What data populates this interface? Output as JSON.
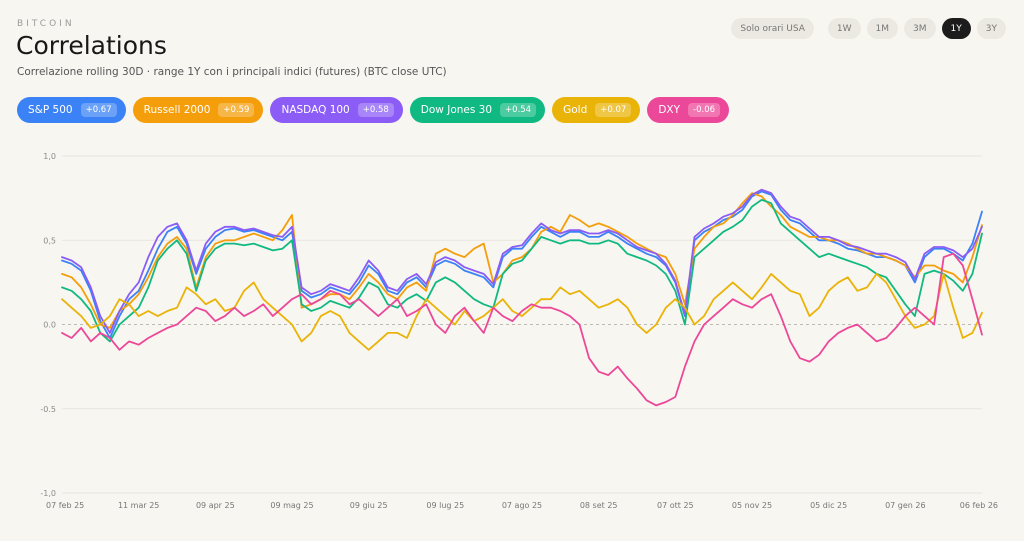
{
  "header": {
    "eyebrow": "BITCOIN",
    "title": "Correlations",
    "subtitle": "Correlazione rolling 30D · range 1Y con i principali indici (futures) (BTC close UTC)"
  },
  "controls": {
    "hours_toggle": "Solo orari USA",
    "ranges": [
      {
        "label": "1W",
        "active": false
      },
      {
        "label": "1M",
        "active": false
      },
      {
        "label": "3M",
        "active": false
      },
      {
        "label": "1Y",
        "active": true
      },
      {
        "label": "3Y",
        "active": false
      }
    ]
  },
  "chips": [
    {
      "name": "S&P 500",
      "value": "+0.67",
      "color": "#3b82f6"
    },
    {
      "name": "Russell 2000",
      "value": "+0.59",
      "color": "#f59e0b"
    },
    {
      "name": "NASDAQ 100",
      "value": "+0.58",
      "color": "#8b5cf6"
    },
    {
      "name": "Dow Jones 30",
      "value": "+0.54",
      "color": "#10b981"
    },
    {
      "name": "Gold",
      "value": "+0.07",
      "color": "#eab308"
    },
    {
      "name": "DXY",
      "value": "-0.06",
      "color": "#ec4899"
    }
  ],
  "chart_data": {
    "type": "line",
    "ylim": [
      -1.0,
      1.0
    ],
    "yticks": [
      "1,0",
      "0,5",
      "0.0",
      "-0.5",
      "-1,0"
    ],
    "yticks_values": [
      1.0,
      0.5,
      0.0,
      -0.5,
      -1.0
    ],
    "xticks": [
      "07 feb 25",
      "11 mar 25",
      "09 apr 25",
      "09 mag 25",
      "09 giu 25",
      "09 lug 25",
      "07 ago 25",
      "08 set 25",
      "07 ott 25",
      "05 nov 25",
      "05 dic 25",
      "07 gen 26",
      "06 feb 26"
    ],
    "xticks_index": [
      0,
      8,
      16,
      24,
      32,
      40,
      48,
      56,
      64,
      72,
      80,
      88,
      96
    ],
    "grid": true,
    "zero_line": "dashed",
    "x": [
      "07 feb 25",
      "11 feb 25",
      "15 feb 25",
      "19 feb 25",
      "23 feb 25",
      "27 feb 25",
      "03 mar 25",
      "07 mar 25",
      "11 mar 25",
      "15 mar 25",
      "19 mar 25",
      "23 mar 25",
      "27 mar 25",
      "31 mar 25",
      "04 apr 25",
      "08 apr 25",
      "09 apr 25",
      "13 apr 25",
      "17 apr 25",
      "21 apr 25",
      "25 apr 25",
      "29 apr 25",
      "03 mag 25",
      "07 mag 25",
      "09 mag 25",
      "13 mag 25",
      "17 mag 25",
      "21 mag 25",
      "25 mag 25",
      "29 mag 25",
      "02 giu 25",
      "06 giu 25",
      "09 giu 25",
      "13 giu 25",
      "17 giu 25",
      "21 giu 25",
      "25 giu 25",
      "29 giu 25",
      "03 lug 25",
      "07 lug 25",
      "09 lug 25",
      "13 lug 25",
      "17 lug 25",
      "21 lug 25",
      "25 lug 25",
      "29 lug 25",
      "02 ago 25",
      "06 ago 25",
      "07 ago 25",
      "11 ago 25",
      "15 ago 25",
      "19 ago 25",
      "23 ago 25",
      "27 ago 25",
      "31 ago 25",
      "04 set 25",
      "08 set 25",
      "12 set 25",
      "16 set 25",
      "20 set 25",
      "24 set 25",
      "28 set 25",
      "02 ott 25",
      "06 ott 25",
      "07 ott 25",
      "11 ott 25",
      "15 ott 25",
      "19 ott 25",
      "23 ott 25",
      "27 ott 25",
      "31 ott 25",
      "04 nov 25",
      "05 nov 25",
      "09 nov 25",
      "13 nov 25",
      "17 nov 25",
      "21 nov 25",
      "25 nov 25",
      "29 nov 25",
      "03 dic 25",
      "05 dic 25",
      "09 dic 25",
      "13 dic 25",
      "17 dic 25",
      "21 dic 25",
      "25 dic 25",
      "29 dic 25",
      "02 gen 26",
      "07 gen 26",
      "11 gen 26",
      "15 gen 26",
      "19 gen 26",
      "23 gen 26",
      "27 gen 26",
      "31 gen 26",
      "04 feb 26",
      "06 feb 26"
    ],
    "series": [
      {
        "name": "S&P 500",
        "color": "#3b82f6",
        "values": [
          0.38,
          0.36,
          0.32,
          0.2,
          0.02,
          -0.08,
          0.05,
          0.15,
          0.2,
          0.32,
          0.45,
          0.55,
          0.58,
          0.48,
          0.3,
          0.45,
          0.52,
          0.56,
          0.57,
          0.55,
          0.56,
          0.54,
          0.52,
          0.5,
          0.55,
          0.2,
          0.16,
          0.18,
          0.22,
          0.2,
          0.18,
          0.25,
          0.35,
          0.3,
          0.2,
          0.18,
          0.25,
          0.28,
          0.22,
          0.35,
          0.38,
          0.36,
          0.32,
          0.3,
          0.28,
          0.22,
          0.4,
          0.45,
          0.45,
          0.52,
          0.58,
          0.55,
          0.52,
          0.55,
          0.55,
          0.52,
          0.52,
          0.55,
          0.52,
          0.48,
          0.45,
          0.42,
          0.4,
          0.35,
          0.25,
          0.05,
          0.5,
          0.55,
          0.58,
          0.62,
          0.64,
          0.68,
          0.76,
          0.79,
          0.77,
          0.68,
          0.62,
          0.6,
          0.55,
          0.5,
          0.5,
          0.48,
          0.45,
          0.44,
          0.42,
          0.4,
          0.4,
          0.38,
          0.35,
          0.25,
          0.4,
          0.45,
          0.45,
          0.42,
          0.38,
          0.48,
          0.67
        ]
      },
      {
        "name": "Russell 2000",
        "color": "#f59e0b",
        "values": [
          0.3,
          0.28,
          0.22,
          0.12,
          0.0,
          -0.02,
          0.08,
          0.12,
          0.18,
          0.28,
          0.4,
          0.48,
          0.52,
          0.45,
          0.22,
          0.4,
          0.48,
          0.5,
          0.5,
          0.52,
          0.54,
          0.52,
          0.5,
          0.56,
          0.65,
          0.1,
          0.12,
          0.15,
          0.18,
          0.18,
          0.15,
          0.22,
          0.3,
          0.25,
          0.18,
          0.15,
          0.22,
          0.25,
          0.2,
          0.42,
          0.45,
          0.42,
          0.4,
          0.45,
          0.48,
          0.25,
          0.3,
          0.38,
          0.4,
          0.45,
          0.55,
          0.58,
          0.55,
          0.65,
          0.62,
          0.58,
          0.6,
          0.58,
          0.55,
          0.52,
          0.48,
          0.45,
          0.42,
          0.4,
          0.3,
          0.12,
          0.45,
          0.52,
          0.58,
          0.6,
          0.65,
          0.72,
          0.78,
          0.76,
          0.7,
          0.65,
          0.58,
          0.55,
          0.52,
          0.52,
          0.5,
          0.5,
          0.48,
          0.45,
          0.42,
          0.42,
          0.4,
          0.38,
          0.35,
          0.28,
          0.35,
          0.35,
          0.32,
          0.3,
          0.25,
          0.4,
          0.59
        ]
      },
      {
        "name": "NASDAQ 100",
        "color": "#8b5cf6",
        "values": [
          0.4,
          0.38,
          0.34,
          0.22,
          0.05,
          -0.05,
          0.08,
          0.18,
          0.25,
          0.4,
          0.52,
          0.58,
          0.6,
          0.5,
          0.32,
          0.48,
          0.55,
          0.58,
          0.58,
          0.56,
          0.57,
          0.55,
          0.53,
          0.52,
          0.58,
          0.22,
          0.18,
          0.2,
          0.24,
          0.22,
          0.2,
          0.28,
          0.38,
          0.32,
          0.22,
          0.2,
          0.27,
          0.3,
          0.24,
          0.37,
          0.4,
          0.38,
          0.34,
          0.32,
          0.3,
          0.24,
          0.42,
          0.46,
          0.47,
          0.54,
          0.6,
          0.56,
          0.54,
          0.56,
          0.56,
          0.54,
          0.54,
          0.56,
          0.54,
          0.5,
          0.46,
          0.44,
          0.42,
          0.36,
          0.26,
          0.06,
          0.52,
          0.57,
          0.6,
          0.64,
          0.66,
          0.7,
          0.77,
          0.8,
          0.78,
          0.7,
          0.64,
          0.62,
          0.57,
          0.52,
          0.52,
          0.5,
          0.47,
          0.46,
          0.44,
          0.42,
          0.42,
          0.4,
          0.37,
          0.27,
          0.42,
          0.46,
          0.46,
          0.44,
          0.4,
          0.45,
          0.58
        ]
      },
      {
        "name": "Dow Jones 30",
        "color": "#10b981",
        "values": [
          0.22,
          0.2,
          0.15,
          0.08,
          -0.05,
          -0.1,
          0.0,
          0.05,
          0.1,
          0.22,
          0.38,
          0.45,
          0.5,
          0.42,
          0.2,
          0.38,
          0.45,
          0.48,
          0.48,
          0.47,
          0.48,
          0.46,
          0.44,
          0.45,
          0.5,
          0.12,
          0.08,
          0.1,
          0.14,
          0.12,
          0.1,
          0.16,
          0.25,
          0.22,
          0.12,
          0.1,
          0.15,
          0.18,
          0.14,
          0.25,
          0.28,
          0.25,
          0.2,
          0.15,
          0.12,
          0.1,
          0.3,
          0.36,
          0.38,
          0.45,
          0.52,
          0.5,
          0.48,
          0.5,
          0.5,
          0.48,
          0.48,
          0.5,
          0.48,
          0.42,
          0.4,
          0.38,
          0.35,
          0.3,
          0.2,
          0.0,
          0.4,
          0.45,
          0.5,
          0.55,
          0.58,
          0.62,
          0.7,
          0.74,
          0.72,
          0.6,
          0.55,
          0.5,
          0.45,
          0.4,
          0.42,
          0.4,
          0.38,
          0.36,
          0.34,
          0.3,
          0.28,
          0.2,
          0.12,
          0.05,
          0.3,
          0.32,
          0.3,
          0.26,
          0.2,
          0.3,
          0.54
        ]
      },
      {
        "name": "Gold",
        "color": "#eab308",
        "values": [
          0.15,
          0.1,
          0.05,
          -0.02,
          0.0,
          0.05,
          0.15,
          0.12,
          0.05,
          0.08,
          0.05,
          0.08,
          0.1,
          0.22,
          0.18,
          0.12,
          0.15,
          0.08,
          0.1,
          0.2,
          0.25,
          0.15,
          0.1,
          0.05,
          0.0,
          -0.1,
          -0.05,
          0.05,
          0.08,
          0.05,
          -0.05,
          -0.1,
          -0.15,
          -0.1,
          -0.05,
          -0.05,
          -0.08,
          0.05,
          0.15,
          0.1,
          0.05,
          0.0,
          0.08,
          0.02,
          0.05,
          0.1,
          0.15,
          0.08,
          0.05,
          0.1,
          0.15,
          0.15,
          0.22,
          0.18,
          0.2,
          0.15,
          0.1,
          0.12,
          0.15,
          0.1,
          0.0,
          -0.05,
          0.0,
          0.1,
          0.15,
          0.1,
          0.0,
          0.05,
          0.15,
          0.2,
          0.25,
          0.2,
          0.15,
          0.22,
          0.3,
          0.25,
          0.2,
          0.18,
          0.05,
          0.1,
          0.2,
          0.25,
          0.28,
          0.2,
          0.22,
          0.3,
          0.25,
          0.15,
          0.05,
          -0.02,
          0.0,
          0.05,
          0.3,
          0.1,
          -0.08,
          -0.05,
          0.07
        ]
      },
      {
        "name": "DXY",
        "color": "#ec4899",
        "values": [
          -0.05,
          -0.08,
          -0.02,
          -0.1,
          -0.05,
          -0.08,
          -0.15,
          -0.1,
          -0.12,
          -0.08,
          -0.05,
          -0.02,
          0.0,
          0.05,
          0.1,
          0.08,
          0.02,
          0.05,
          0.1,
          0.05,
          0.08,
          0.12,
          0.05,
          0.1,
          0.15,
          0.18,
          0.12,
          0.15,
          0.2,
          0.18,
          0.12,
          0.15,
          0.1,
          0.05,
          0.1,
          0.15,
          0.05,
          0.08,
          0.12,
          0.0,
          -0.05,
          0.05,
          0.1,
          0.02,
          -0.05,
          0.1,
          0.05,
          0.02,
          0.08,
          0.12,
          0.1,
          0.1,
          0.08,
          0.05,
          0.0,
          -0.2,
          -0.28,
          -0.3,
          -0.25,
          -0.32,
          -0.38,
          -0.45,
          -0.48,
          -0.46,
          -0.43,
          -0.25,
          -0.1,
          0.0,
          0.05,
          0.1,
          0.15,
          0.12,
          0.1,
          0.15,
          0.18,
          0.05,
          -0.1,
          -0.2,
          -0.22,
          -0.18,
          -0.1,
          -0.05,
          -0.02,
          0.0,
          -0.05,
          -0.1,
          -0.08,
          -0.02,
          0.05,
          0.1,
          0.05,
          0.0,
          0.4,
          0.42,
          0.35,
          0.15,
          -0.06
        ]
      }
    ]
  }
}
